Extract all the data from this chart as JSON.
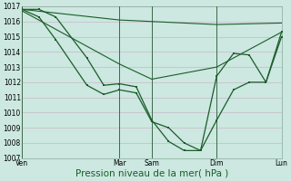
{
  "bg_color": "#cce8e0",
  "grid_color": "#c8b8c8",
  "line_color": "#1a5c2a",
  "ylim": [
    1007,
    1017
  ],
  "yticks": [
    1007,
    1008,
    1009,
    1010,
    1011,
    1012,
    1013,
    1014,
    1015,
    1016,
    1017
  ],
  "xlabel": "Pression niveau de la mer( hPa )",
  "xlabel_fontsize": 7.5,
  "tick_fontsize": 5.5,
  "xtick_labels": [
    "Ven",
    "Mar",
    "Sam",
    "Dim",
    "Lun"
  ],
  "xtick_positions": [
    0.0,
    0.375,
    0.5,
    0.75,
    1.0
  ],
  "vline_positions": [
    0.0,
    0.375,
    0.5,
    0.75,
    1.0
  ],
  "line1_x": [
    0.0,
    0.375,
    0.5,
    0.75,
    1.0
  ],
  "line1_y": [
    1016.8,
    1016.1,
    1016.0,
    1015.8,
    1015.9
  ],
  "line2_x": [
    0.0,
    0.375,
    0.5,
    0.75,
    1.0
  ],
  "line2_y": [
    1016.7,
    1013.2,
    1012.2,
    1013.0,
    1015.3
  ],
  "line3_x": [
    0.0,
    0.065,
    0.13,
    0.25,
    0.315,
    0.375,
    0.44,
    0.5,
    0.565,
    0.625,
    0.688,
    0.75,
    0.815,
    0.875,
    0.94,
    1.0
  ],
  "line3_y": [
    1016.8,
    1016.3,
    1014.8,
    1011.8,
    1011.2,
    1011.5,
    1011.3,
    1009.4,
    1009.0,
    1008.0,
    1007.5,
    1009.5,
    1011.5,
    1012.0,
    1012.0,
    1015.0
  ],
  "line4_x": [
    0.0,
    0.065,
    0.13,
    0.25,
    0.315,
    0.375,
    0.44,
    0.5,
    0.565,
    0.625,
    0.688,
    0.75,
    0.815,
    0.875,
    0.94,
    1.0
  ],
  "line4_y": [
    1016.8,
    1016.8,
    1016.3,
    1013.6,
    1011.8,
    1011.9,
    1011.7,
    1009.5,
    1008.1,
    1007.5,
    1007.5,
    1012.4,
    1013.9,
    1013.8,
    1012.0,
    1015.3
  ]
}
